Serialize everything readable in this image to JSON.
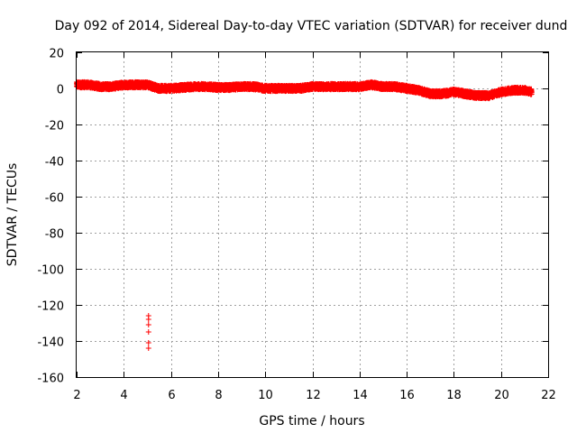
{
  "chart_data": {
    "type": "scatter",
    "title": "Day 092 of 2014, Sidereal Day-to-day VTEC variation (SDTVAR) for receiver dund",
    "xlabel": "GPS time / hours",
    "ylabel": "SDTVAR / TECUs",
    "xlim": [
      2,
      22
    ],
    "ylim": [
      -160,
      20
    ],
    "xticks": [
      2,
      4,
      6,
      8,
      10,
      12,
      14,
      16,
      18,
      20,
      22
    ],
    "yticks": [
      20,
      0,
      -20,
      -40,
      -60,
      -80,
      -100,
      -120,
      -140,
      -160
    ],
    "grid": true,
    "marker": "+",
    "color": "#ff0000",
    "series": [
      {
        "name": "SDTVAR",
        "trend": {
          "x": [
            2.0,
            2.5,
            3.0,
            3.5,
            4.0,
            4.5,
            5.0,
            5.5,
            6.0,
            6.5,
            7.0,
            7.5,
            8.0,
            8.5,
            9.0,
            9.5,
            10.0,
            10.5,
            11.0,
            11.5,
            12.0,
            12.5,
            13.0,
            13.5,
            14.0,
            14.5,
            15.0,
            15.5,
            16.0,
            16.5,
            17.0,
            17.5,
            18.0,
            18.5,
            19.0,
            19.5,
            20.0,
            20.5,
            21.0,
            21.3
          ],
          "y": [
            2.0,
            2.0,
            1.0,
            1.0,
            2.0,
            2.0,
            2.0,
            0.0,
            0.0,
            0.5,
            1.0,
            1.0,
            0.5,
            0.5,
            1.0,
            1.0,
            0.0,
            0.0,
            0.0,
            0.0,
            1.0,
            1.0,
            1.0,
            1.0,
            1.0,
            2.0,
            1.0,
            1.0,
            0.0,
            -1.0,
            -3.0,
            -3.0,
            -2.0,
            -3.0,
            -4.0,
            -4.0,
            -2.0,
            -1.0,
            -1.0,
            -2.0
          ],
          "spread": 1.6,
          "samples_per_hour": 120
        },
        "outliers": {
          "x": [
            5.05,
            5.05,
            5.05,
            5.05,
            5.05,
            5.05
          ],
          "y": [
            -126,
            -128,
            -131,
            -135,
            -141,
            -144
          ]
        }
      }
    ]
  }
}
